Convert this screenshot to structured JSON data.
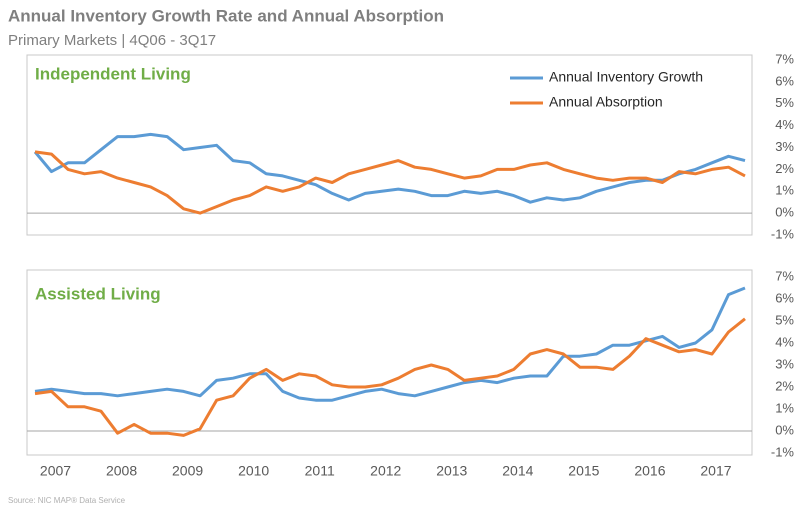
{
  "header": {
    "title": "Annual Inventory Growth Rate and Annual Absorption",
    "subtitle": "Primary Markets | 4Q06 - 3Q17",
    "source": "Source: NIC MAP® Data Service"
  },
  "chart_data": [
    {
      "type": "line",
      "title": "Independent Living",
      "legend": "top-right",
      "ylim": [
        -1,
        7
      ],
      "yticks": [
        {
          "value": -1,
          "label": "-1%"
        },
        {
          "value": 0,
          "label": "0%"
        },
        {
          "value": 1,
          "label": "1%"
        },
        {
          "value": 2,
          "label": "2%"
        },
        {
          "value": 3,
          "label": "3%"
        },
        {
          "value": 4,
          "label": "4%"
        },
        {
          "value": 5,
          "label": "5%"
        },
        {
          "value": 6,
          "label": "6%"
        },
        {
          "value": 7,
          "label": "7%"
        }
      ],
      "series": [
        {
          "name": "Annual Inventory Growth",
          "color": "#5b9bd5",
          "values": [
            2.8,
            1.9,
            2.3,
            2.3,
            2.9,
            3.5,
            3.5,
            3.6,
            3.5,
            2.9,
            3.0,
            3.1,
            2.4,
            2.3,
            1.8,
            1.7,
            1.5,
            1.3,
            0.9,
            0.6,
            0.9,
            1.0,
            1.1,
            1.0,
            0.8,
            0.8,
            1.0,
            0.9,
            1.0,
            0.8,
            0.5,
            0.7,
            0.6,
            0.7,
            1.0,
            1.2,
            1.4,
            1.5,
            1.5,
            1.8,
            2.0,
            2.3,
            2.6,
            2.4
          ]
        },
        {
          "name": "Annual Absorption",
          "color": "#ed7d31",
          "values": [
            2.8,
            2.7,
            2.0,
            1.8,
            1.9,
            1.6,
            1.4,
            1.2,
            0.8,
            0.2,
            0.0,
            0.3,
            0.6,
            0.8,
            1.2,
            1.0,
            1.2,
            1.6,
            1.4,
            1.8,
            2.0,
            2.2,
            2.4,
            2.1,
            2.0,
            1.8,
            1.6,
            1.7,
            2.0,
            2.0,
            2.2,
            2.3,
            2.0,
            1.8,
            1.6,
            1.5,
            1.6,
            1.6,
            1.4,
            1.9,
            1.8,
            2.0,
            2.1,
            1.7
          ]
        }
      ]
    },
    {
      "type": "line",
      "title": "Assisted Living",
      "categories": [
        null,
        "2007",
        null,
        null,
        null,
        "2008",
        null,
        null,
        null,
        "2009",
        null,
        null,
        null,
        "2010",
        null,
        null,
        null,
        "2011",
        null,
        null,
        null,
        "2012",
        null,
        null,
        null,
        "2013",
        null,
        null,
        null,
        "2014",
        null,
        null,
        null,
        "2015",
        null,
        null,
        null,
        "2016",
        null,
        null,
        null,
        "2017",
        null,
        null
      ],
      "ylim": [
        -1,
        7
      ],
      "yticks": [
        {
          "value": -1,
          "label": "-1%"
        },
        {
          "value": 0,
          "label": "0%"
        },
        {
          "value": 1,
          "label": "1%"
        },
        {
          "value": 2,
          "label": "2%"
        },
        {
          "value": 3,
          "label": "3%"
        },
        {
          "value": 4,
          "label": "4%"
        },
        {
          "value": 5,
          "label": "5%"
        },
        {
          "value": 6,
          "label": "6%"
        },
        {
          "value": 7,
          "label": "7%"
        }
      ],
      "series": [
        {
          "color": "#5b9bd5",
          "values": [
            1.8,
            1.9,
            1.8,
            1.7,
            1.7,
            1.6,
            1.7,
            1.8,
            1.9,
            1.8,
            1.6,
            2.3,
            2.4,
            2.6,
            2.6,
            1.8,
            1.5,
            1.4,
            1.4,
            1.6,
            1.8,
            1.9,
            1.7,
            1.6,
            1.8,
            2.0,
            2.2,
            2.3,
            2.2,
            2.4,
            2.5,
            2.5,
            3.4,
            3.4,
            3.5,
            3.9,
            3.9,
            4.1,
            4.3,
            3.8,
            4.0,
            4.6,
            6.2,
            6.5
          ]
        },
        {
          "color": "#ed7d31",
          "values": [
            1.7,
            1.8,
            1.1,
            1.1,
            0.9,
            -0.1,
            0.3,
            -0.1,
            -0.1,
            -0.2,
            0.1,
            1.4,
            1.6,
            2.4,
            2.8,
            2.3,
            2.6,
            2.5,
            2.1,
            2.0,
            2.0,
            2.1,
            2.4,
            2.8,
            3.0,
            2.8,
            2.3,
            2.4,
            2.5,
            2.8,
            3.5,
            3.7,
            3.5,
            2.9,
            2.9,
            2.8,
            3.4,
            4.2,
            3.9,
            3.6,
            3.7,
            3.5,
            4.5,
            5.1
          ]
        }
      ]
    }
  ]
}
